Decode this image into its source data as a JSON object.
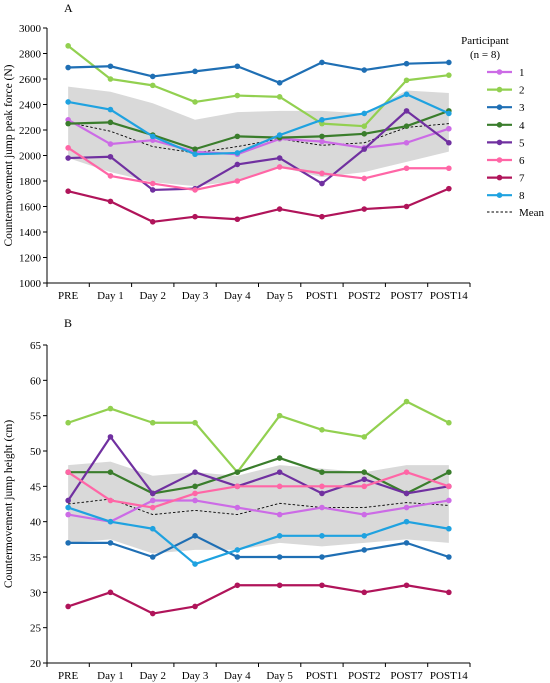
{
  "legend": {
    "title_line1": "Participant",
    "title_line2": "(n = 8)",
    "mean_label": "Mean"
  },
  "colors": {
    "band": "#d9d9d9",
    "mean_line": "#000000"
  },
  "chart_data": [
    {
      "type": "line",
      "panel_label": "A",
      "ylabel": "Countermovement jump peak force (N)",
      "xlabel": "",
      "ylim": [
        1000,
        3000
      ],
      "yticks": [
        1000,
        1200,
        1400,
        1600,
        1800,
        2000,
        2200,
        2400,
        2600,
        2800,
        3000
      ],
      "categories": [
        "PRE",
        "Day 1",
        "Day 2",
        "Day 3",
        "Day 4",
        "Day 5",
        "POST1",
        "POST2",
        "POST7",
        "POST14"
      ],
      "grid": false,
      "legend_position": "right",
      "series": [
        {
          "name": "1",
          "color": "#cc6be6",
          "values": [
            2280,
            2090,
            2120,
            2030,
            2010,
            2130,
            2110,
            2060,
            2100,
            2210
          ]
        },
        {
          "name": "2",
          "color": "#92d050",
          "values": [
            2860,
            2600,
            2550,
            2420,
            2470,
            2460,
            2250,
            2230,
            2590,
            2630
          ]
        },
        {
          "name": "3",
          "color": "#1f6fb4",
          "values": [
            2690,
            2700,
            2620,
            2660,
            2700,
            2570,
            2730,
            2670,
            2720,
            2730
          ]
        },
        {
          "name": "4",
          "color": "#3a7d2c",
          "values": [
            2250,
            2260,
            2160,
            2050,
            2150,
            2140,
            2150,
            2170,
            2230,
            2350
          ]
        },
        {
          "name": "5",
          "color": "#7030a0",
          "values": [
            1980,
            1990,
            1730,
            1740,
            1930,
            1980,
            1780,
            2050,
            2350,
            2100
          ]
        },
        {
          "name": "6",
          "color": "#ff66a6",
          "values": [
            2060,
            1840,
            1780,
            1730,
            1800,
            1910,
            1860,
            1820,
            1900,
            1900
          ]
        },
        {
          "name": "7",
          "color": "#b0145a",
          "values": [
            1720,
            1640,
            1480,
            1520,
            1500,
            1580,
            1520,
            1580,
            1600,
            1740
          ]
        },
        {
          "name": "8",
          "color": "#1fa2e0",
          "values": [
            2420,
            2360,
            2150,
            2010,
            2020,
            2160,
            2280,
            2330,
            2480,
            2330
          ]
        }
      ],
      "mean": [
        2260,
        2190,
        2070,
        2020,
        2070,
        2130,
        2080,
        2100,
        2220,
        2250
      ],
      "band_upper": [
        2540,
        2500,
        2410,
        2280,
        2340,
        2350,
        2350,
        2330,
        2510,
        2490
      ],
      "band_lower": [
        1980,
        1870,
        1790,
        1760,
        1800,
        1910,
        1830,
        1870,
        1950,
        2030
      ]
    },
    {
      "type": "line",
      "panel_label": "B",
      "ylabel": "Countermovement jump height (cm)",
      "xlabel": "",
      "ylim": [
        20,
        65
      ],
      "yticks": [
        20,
        25,
        30,
        35,
        40,
        45,
        50,
        55,
        60,
        65
      ],
      "categories": [
        "PRE",
        "Day 1",
        "Day 2",
        "Day 3",
        "Day 4",
        "Day 5",
        "POST1",
        "POST2",
        "POST7",
        "POST14"
      ],
      "grid": false,
      "series": [
        {
          "name": "1",
          "color": "#cc6be6",
          "values": [
            41,
            40,
            43,
            43,
            42,
            41,
            42,
            41,
            42,
            43
          ]
        },
        {
          "name": "2",
          "color": "#92d050",
          "values": [
            54,
            56,
            54,
            54,
            47,
            55,
            53,
            52,
            57,
            54
          ]
        },
        {
          "name": "3",
          "color": "#1f6fb4",
          "values": [
            37,
            37,
            35,
            38,
            35,
            35,
            35,
            36,
            37,
            35
          ]
        },
        {
          "name": "4",
          "color": "#3a7d2c",
          "values": [
            47,
            47,
            44,
            45,
            47,
            49,
            47,
            47,
            44,
            47
          ]
        },
        {
          "name": "5",
          "color": "#7030a0",
          "values": [
            43,
            52,
            44,
            47,
            45,
            47,
            44,
            46,
            44,
            45
          ]
        },
        {
          "name": "6",
          "color": "#ff66a6",
          "values": [
            47,
            43,
            42,
            44,
            45,
            45,
            45,
            45,
            47,
            45
          ]
        },
        {
          "name": "7",
          "color": "#b0145a",
          "values": [
            28,
            30,
            27,
            28,
            31,
            31,
            31,
            30,
            31,
            30
          ]
        },
        {
          "name": "8",
          "color": "#1fa2e0",
          "values": [
            42,
            40,
            39,
            34,
            36,
            38,
            38,
            38,
            40,
            39
          ]
        }
      ],
      "mean": [
        42.5,
        43.2,
        41.0,
        41.6,
        41.0,
        42.6,
        42.0,
        42.0,
        42.7,
        42.3
      ],
      "band_upper": [
        48.0,
        48.5,
        46.5,
        47.0,
        46.5,
        48.0,
        47.5,
        47.0,
        48.0,
        48.0
      ],
      "band_lower": [
        37.0,
        37.5,
        35.5,
        36.0,
        36.0,
        37.0,
        36.5,
        37.0,
        37.5,
        37.0
      ]
    }
  ]
}
